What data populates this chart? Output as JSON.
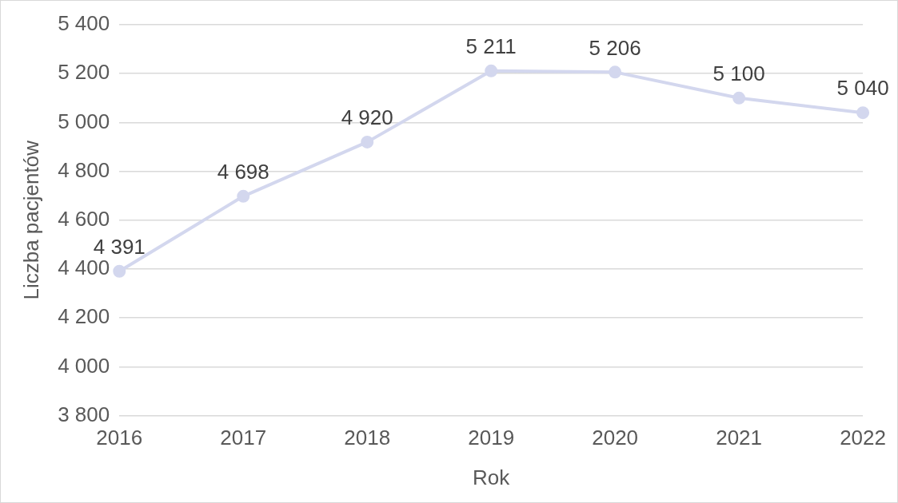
{
  "chart_data": {
    "type": "line",
    "xlabel": "Rok",
    "ylabel": "Liczba pacjentów",
    "categories": [
      "2016",
      "2017",
      "2018",
      "2019",
      "2020",
      "2021",
      "2022"
    ],
    "series": [
      {
        "color": "#d3d7ee",
        "values": [
          4391,
          4698,
          4920,
          5211,
          5206,
          5100,
          5040
        ],
        "value_labels": [
          "4 391",
          "4 698",
          "4 920",
          "5 211",
          "5 206",
          "5 100",
          "5 040"
        ]
      }
    ],
    "ylim": [
      3800,
      5400
    ],
    "yticks": [
      {
        "value": 3800,
        "label": "3 800"
      },
      {
        "value": 4000,
        "label": "4 000"
      },
      {
        "value": 4200,
        "label": "4 200"
      },
      {
        "value": 4400,
        "label": "4 400"
      },
      {
        "value": 4600,
        "label": "4 600"
      },
      {
        "value": 4800,
        "label": "4 800"
      },
      {
        "value": 5000,
        "label": "5 000"
      },
      {
        "value": 5200,
        "label": "5 200"
      },
      {
        "value": 5400,
        "label": "5 400"
      }
    ],
    "grid": "y",
    "legend": false,
    "marker": "circle",
    "line_style": "solid"
  }
}
